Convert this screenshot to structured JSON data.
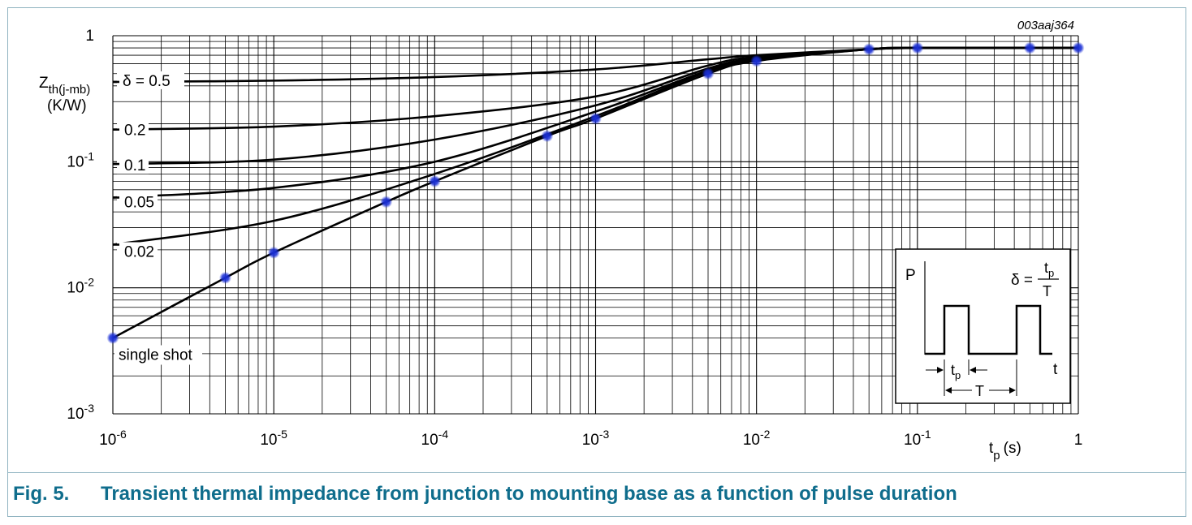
{
  "chart_data": {
    "type": "line",
    "xscale": "log",
    "yscale": "log",
    "figure_code": "003aaj364",
    "ylabel_main": "Z",
    "ylabel_sub": "th(j-mb)",
    "ylabel_unit": "(K/W)",
    "xlabel_main": "t",
    "xlabel_sub": "p",
    "xlabel_unit": "(s)",
    "xlim": [
      1e-06,
      1
    ],
    "ylim": [
      0.001,
      1
    ],
    "x_ticks": [
      {
        "value": 1e-06,
        "base": "10",
        "exp": "-6"
      },
      {
        "value": 1e-05,
        "base": "10",
        "exp": "-5"
      },
      {
        "value": 0.0001,
        "base": "10",
        "exp": "-4"
      },
      {
        "value": 0.001,
        "base": "10",
        "exp": "-3"
      },
      {
        "value": 0.01,
        "base": "10",
        "exp": "-2"
      },
      {
        "value": 0.1,
        "base": "10",
        "exp": "-1"
      },
      {
        "value": 1,
        "base": "1",
        "exp": ""
      }
    ],
    "y_ticks": [
      {
        "value": 1,
        "base": "1",
        "exp": ""
      },
      {
        "value": 0.1,
        "base": "10",
        "exp": "-1"
      },
      {
        "value": 0.01,
        "base": "10",
        "exp": "-2"
      },
      {
        "value": 0.001,
        "base": "10",
        "exp": "-3"
      }
    ],
    "series": [
      {
        "name": "δ = 0.5",
        "label": "δ = 0.5",
        "x": [
          1e-06,
          1e-05,
          0.0001,
          0.001,
          0.005,
          0.01,
          0.05,
          0.1,
          1
        ],
        "y": [
          0.43,
          0.44,
          0.47,
          0.54,
          0.65,
          0.7,
          0.78,
          0.8,
          0.8
        ]
      },
      {
        "name": "0.2",
        "label": "0.2",
        "x": [
          1e-06,
          1e-05,
          0.0001,
          0.001,
          0.005,
          0.01,
          0.05,
          0.1,
          1
        ],
        "y": [
          0.18,
          0.19,
          0.23,
          0.33,
          0.58,
          0.68,
          0.78,
          0.8,
          0.8
        ]
      },
      {
        "name": "0.1",
        "label": "0.1",
        "x": [
          1e-06,
          1e-05,
          0.0001,
          0.001,
          0.005,
          0.01,
          0.05,
          0.1,
          1
        ],
        "y": [
          0.096,
          0.104,
          0.15,
          0.28,
          0.55,
          0.66,
          0.78,
          0.8,
          0.8
        ]
      },
      {
        "name": "0.05",
        "label": "0.05",
        "x": [
          1e-06,
          1e-05,
          0.0001,
          0.001,
          0.005,
          0.01,
          0.05,
          0.1,
          1
        ],
        "y": [
          0.052,
          0.062,
          0.1,
          0.25,
          0.53,
          0.65,
          0.78,
          0.8,
          0.8
        ]
      },
      {
        "name": "0.02",
        "label": "0.02",
        "x": [
          1e-06,
          1e-05,
          0.0001,
          0.001,
          0.005,
          0.01,
          0.05,
          0.1,
          1
        ],
        "y": [
          0.022,
          0.034,
          0.08,
          0.23,
          0.52,
          0.64,
          0.78,
          0.8,
          0.8
        ]
      },
      {
        "name": "single shot",
        "label": "single shot",
        "x": [
          1e-06,
          5e-06,
          1e-05,
          5e-05,
          0.0001,
          0.0005,
          0.001,
          0.005,
          0.01,
          0.05,
          0.1,
          0.5,
          1
        ],
        "y": [
          0.004,
          0.012,
          0.019,
          0.048,
          0.07,
          0.16,
          0.22,
          0.5,
          0.63,
          0.78,
          0.8,
          0.8,
          0.8
        ]
      }
    ],
    "marked_points": {
      "x": [
        1e-06,
        5e-06,
        1e-05,
        5e-05,
        0.0001,
        0.0005,
        0.001,
        0.005,
        0.01,
        0.05,
        0.1,
        0.5,
        1
      ],
      "y": [
        0.004,
        0.012,
        0.019,
        0.048,
        0.07,
        0.16,
        0.22,
        0.5,
        0.63,
        0.78,
        0.8,
        0.8,
        0.8
      ]
    },
    "inset": {
      "p_label": "P",
      "t_label": "t",
      "delta_lhs": "δ =",
      "frac_num_main": "t",
      "frac_num_sub": "p",
      "frac_den": "T",
      "tp_main": "t",
      "tp_sub": "p",
      "period_label": "T"
    }
  },
  "caption": {
    "number": "Fig. 5.",
    "title": "Transient thermal impedance from junction to mounting base as a function of pulse duration"
  },
  "colors": {
    "accent": "#0f6d8c",
    "frame": "#8fb3c0",
    "marker": "#1a2fd6"
  }
}
